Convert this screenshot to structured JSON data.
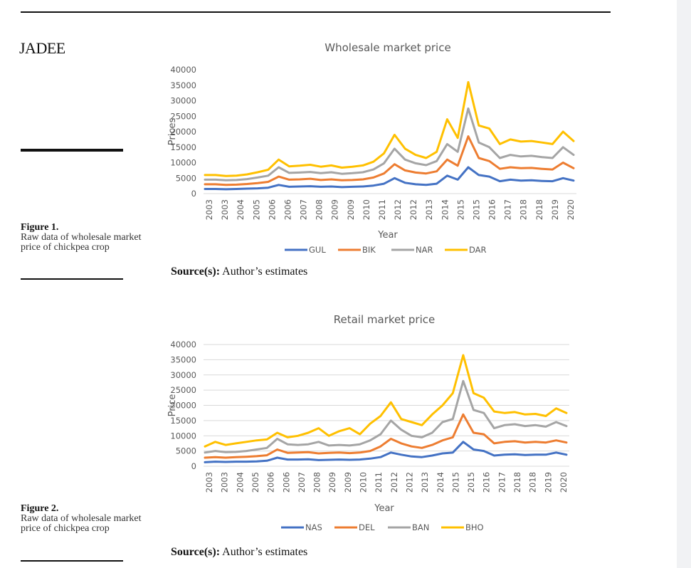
{
  "page": {
    "journal": "JADEE",
    "figures": [
      {
        "label": "Figure 1.",
        "caption": "Raw data of wholesale market price of chickpea crop",
        "source_label": "Source(s):",
        "source_text": " Author’s estimates"
      },
      {
        "label": "Figure 2.",
        "caption": "Raw data of wholesale market price of chickpea crop",
        "source_label": "Source(s):",
        "source_text": " Author’s estimates"
      }
    ]
  },
  "chart_data": [
    {
      "type": "line",
      "title": "Wholesale market price",
      "xlabel": "Year",
      "ylabel": "Prices",
      "ylim": [
        0,
        40000
      ],
      "yticks": [
        "0",
        "5000",
        "10000",
        "15000",
        "20000",
        "25000",
        "30000",
        "35000",
        "40000"
      ],
      "xtick_labels": [
        "2003",
        "2003",
        "2004",
        "2005",
        "2006",
        "2006",
        "2007",
        "2008",
        "2009",
        "2009",
        "2010",
        "2011",
        "2012",
        "2012",
        "2013",
        "2014",
        "2015",
        "2015",
        "2016",
        "2017",
        "2018",
        "2018",
        "2019",
        "2020"
      ],
      "grid": false,
      "legend": "bottom",
      "series": [
        {
          "name": "GUL",
          "color": "#4472c4",
          "values": [
            1500,
            1500,
            1400,
            1500,
            1600,
            1700,
            1900,
            2800,
            2200,
            2300,
            2400,
            2200,
            2300,
            2100,
            2200,
            2300,
            2600,
            3200,
            5000,
            3500,
            3000,
            2800,
            3200,
            5800,
            4500,
            8500,
            6000,
            5500,
            4000,
            4500,
            4200,
            4300,
            4100,
            4000,
            5000,
            4200
          ]
        },
        {
          "name": "BIK",
          "color": "#ed7d31",
          "values": [
            3000,
            3000,
            2800,
            2900,
            3100,
            3400,
            3800,
            5500,
            4500,
            4600,
            4800,
            4400,
            4600,
            4300,
            4400,
            4600,
            5200,
            6500,
            9500,
            7500,
            6800,
            6500,
            7200,
            11000,
            9000,
            18500,
            11500,
            10500,
            8000,
            8500,
            8200,
            8300,
            8000,
            7800,
            10000,
            8200
          ]
        },
        {
          "name": "NAR",
          "color": "#a5a5a5",
          "values": [
            4500,
            4500,
            4300,
            4400,
            4700,
            5200,
            5800,
            8500,
            6700,
            6800,
            7000,
            6600,
            6900,
            6400,
            6600,
            6900,
            7800,
            9800,
            14500,
            11000,
            9800,
            9200,
            10500,
            16000,
            13500,
            27500,
            16500,
            15000,
            11500,
            12500,
            12000,
            12200,
            11800,
            11500,
            15000,
            12500
          ]
        },
        {
          "name": "DAR",
          "color": "#ffc000",
          "values": [
            6000,
            6000,
            5700,
            5800,
            6200,
            6900,
            7700,
            11000,
            8800,
            9000,
            9300,
            8700,
            9100,
            8400,
            8700,
            9100,
            10300,
            13000,
            19000,
            14500,
            12500,
            11500,
            13500,
            24000,
            18000,
            36000,
            22000,
            21000,
            16000,
            17500,
            16800,
            17000,
            16500,
            16000,
            20000,
            17000
          ]
        }
      ]
    },
    {
      "type": "line",
      "title": "Retail market price",
      "xlabel": "Year",
      "ylabel": "Price",
      "ylim": [
        0,
        40000
      ],
      "yticks": [
        "0",
        "5000",
        "10000",
        "15000",
        "20000",
        "25000",
        "30000",
        "35000",
        "40000"
      ],
      "xtick_labels": [
        "2003",
        "2003",
        "2004",
        "2005",
        "2006",
        "2006",
        "2007",
        "2008",
        "2009",
        "2009",
        "2010",
        "2011",
        "2012",
        "2012",
        "2013",
        "2014",
        "2015",
        "2015",
        "2016",
        "2017",
        "2018",
        "2018",
        "2019",
        "2020"
      ],
      "grid": true,
      "legend": "bottom",
      "series": [
        {
          "name": "NAS",
          "color": "#4472c4",
          "values": [
            1300,
            1500,
            1400,
            1500,
            1500,
            1600,
            1800,
            2800,
            2200,
            2200,
            2300,
            2000,
            2100,
            2200,
            2100,
            2200,
            2500,
            3000,
            4500,
            3800,
            3200,
            3000,
            3500,
            4200,
            4500,
            8000,
            5500,
            5000,
            3500,
            3800,
            3900,
            3700,
            3800,
            3800,
            4500,
            3800
          ]
        },
        {
          "name": "DEL",
          "color": "#ed7d31",
          "values": [
            2800,
            3000,
            2800,
            3000,
            3100,
            3300,
            3600,
            5500,
            4400,
            4500,
            4600,
            4200,
            4400,
            4500,
            4300,
            4500,
            5000,
            6500,
            9000,
            7500,
            6500,
            6000,
            7000,
            8500,
            9500,
            17000,
            11000,
            10500,
            7500,
            8000,
            8200,
            7800,
            8000,
            7800,
            8500,
            7800
          ]
        },
        {
          "name": "BAN",
          "color": "#a5a5a5",
          "values": [
            4500,
            5000,
            4600,
            4700,
            5000,
            5500,
            6000,
            9000,
            7200,
            7000,
            7200,
            8000,
            6800,
            7000,
            6800,
            7200,
            8500,
            10500,
            15000,
            12000,
            10000,
            9500,
            11000,
            14500,
            15500,
            28000,
            18500,
            17500,
            12500,
            13500,
            13800,
            13200,
            13500,
            13000,
            14500,
            13200
          ]
        },
        {
          "name": "BHO",
          "color": "#ffc000",
          "values": [
            6500,
            8000,
            7000,
            7500,
            8000,
            8500,
            8800,
            11000,
            9500,
            10000,
            11000,
            12500,
            10000,
            11500,
            12500,
            10500,
            14000,
            16500,
            21000,
            15500,
            14500,
            13500,
            17000,
            20000,
            24000,
            36500,
            24000,
            22500,
            18000,
            17500,
            17800,
            17000,
            17200,
            16500,
            19000,
            17500
          ]
        }
      ]
    }
  ]
}
